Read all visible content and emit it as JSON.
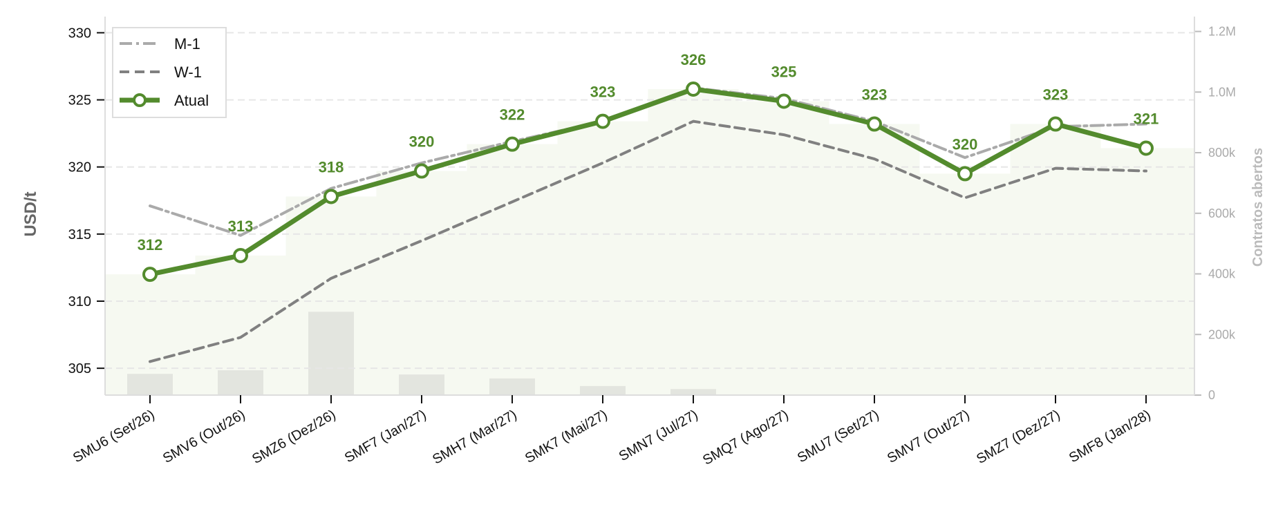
{
  "chart_data": {
    "type": "line",
    "categories": [
      "SMU6 (Set/26)",
      "SMV6 (Out/26)",
      "SMZ6 (Dez/26)",
      "SMF7 (Jan/27)",
      "SMH7 (Mar/27)",
      "SMK7 (Mai/27)",
      "SMN7 (Jul/27)",
      "SMQ7 (Ago/27)",
      "SMU7 (Set/27)",
      "SMV7 (Out/27)",
      "SMZ7 (Dez/27)",
      "SMF8 (Jan/28)"
    ],
    "series": [
      {
        "name": "M-1",
        "values": [
          317.1,
          314.9,
          318.4,
          320.3,
          321.9,
          323.4,
          325.9,
          325.1,
          323.4,
          320.7,
          323.0,
          323.2
        ],
        "color": "#aaaaaa",
        "style": "dash-dot"
      },
      {
        "name": "W-1",
        "values": [
          305.5,
          307.3,
          311.7,
          314.5,
          317.4,
          320.3,
          323.4,
          322.4,
          320.6,
          317.7,
          319.9,
          319.7
        ],
        "color": "#808080",
        "style": "dashed"
      },
      {
        "name": "Atual",
        "values": [
          312.0,
          313.4,
          317.8,
          319.7,
          321.7,
          323.4,
          325.8,
          324.9,
          323.2,
          319.5,
          323.2,
          321.4
        ],
        "color": "#538b2d",
        "style": "solid-markers"
      }
    ],
    "data_labels": [
      "312",
      "313",
      "318",
      "320",
      "322",
      "323",
      "326",
      "325",
      "323",
      "320",
      "323",
      "321"
    ],
    "open_interest": {
      "label": "Contratos abertos",
      "values": [
        70000,
        82000,
        275000,
        68000,
        55000,
        30000,
        20000,
        2000,
        1000,
        500,
        2000,
        0
      ]
    },
    "ylabel": "USD/t",
    "ylim": [
      303,
      331
    ],
    "y_ticks": [
      305,
      310,
      315,
      320,
      325,
      330
    ],
    "y2lim": [
      0,
      1240000
    ],
    "y2_ticks": [
      {
        "value": 0,
        "label": "0"
      },
      {
        "value": 200000,
        "label": "200k"
      },
      {
        "value": 400000,
        "label": "400k"
      },
      {
        "value": 600000,
        "label": "600k"
      },
      {
        "value": 800000,
        "label": "800k"
      },
      {
        "value": 1000000,
        "label": "1.0M"
      },
      {
        "value": 1200000,
        "label": "1.2M"
      }
    ],
    "grid": true,
    "legend_position": "top-left",
    "area_fill_color": "#f6f9f1",
    "bar_color": "#e3e5df"
  }
}
